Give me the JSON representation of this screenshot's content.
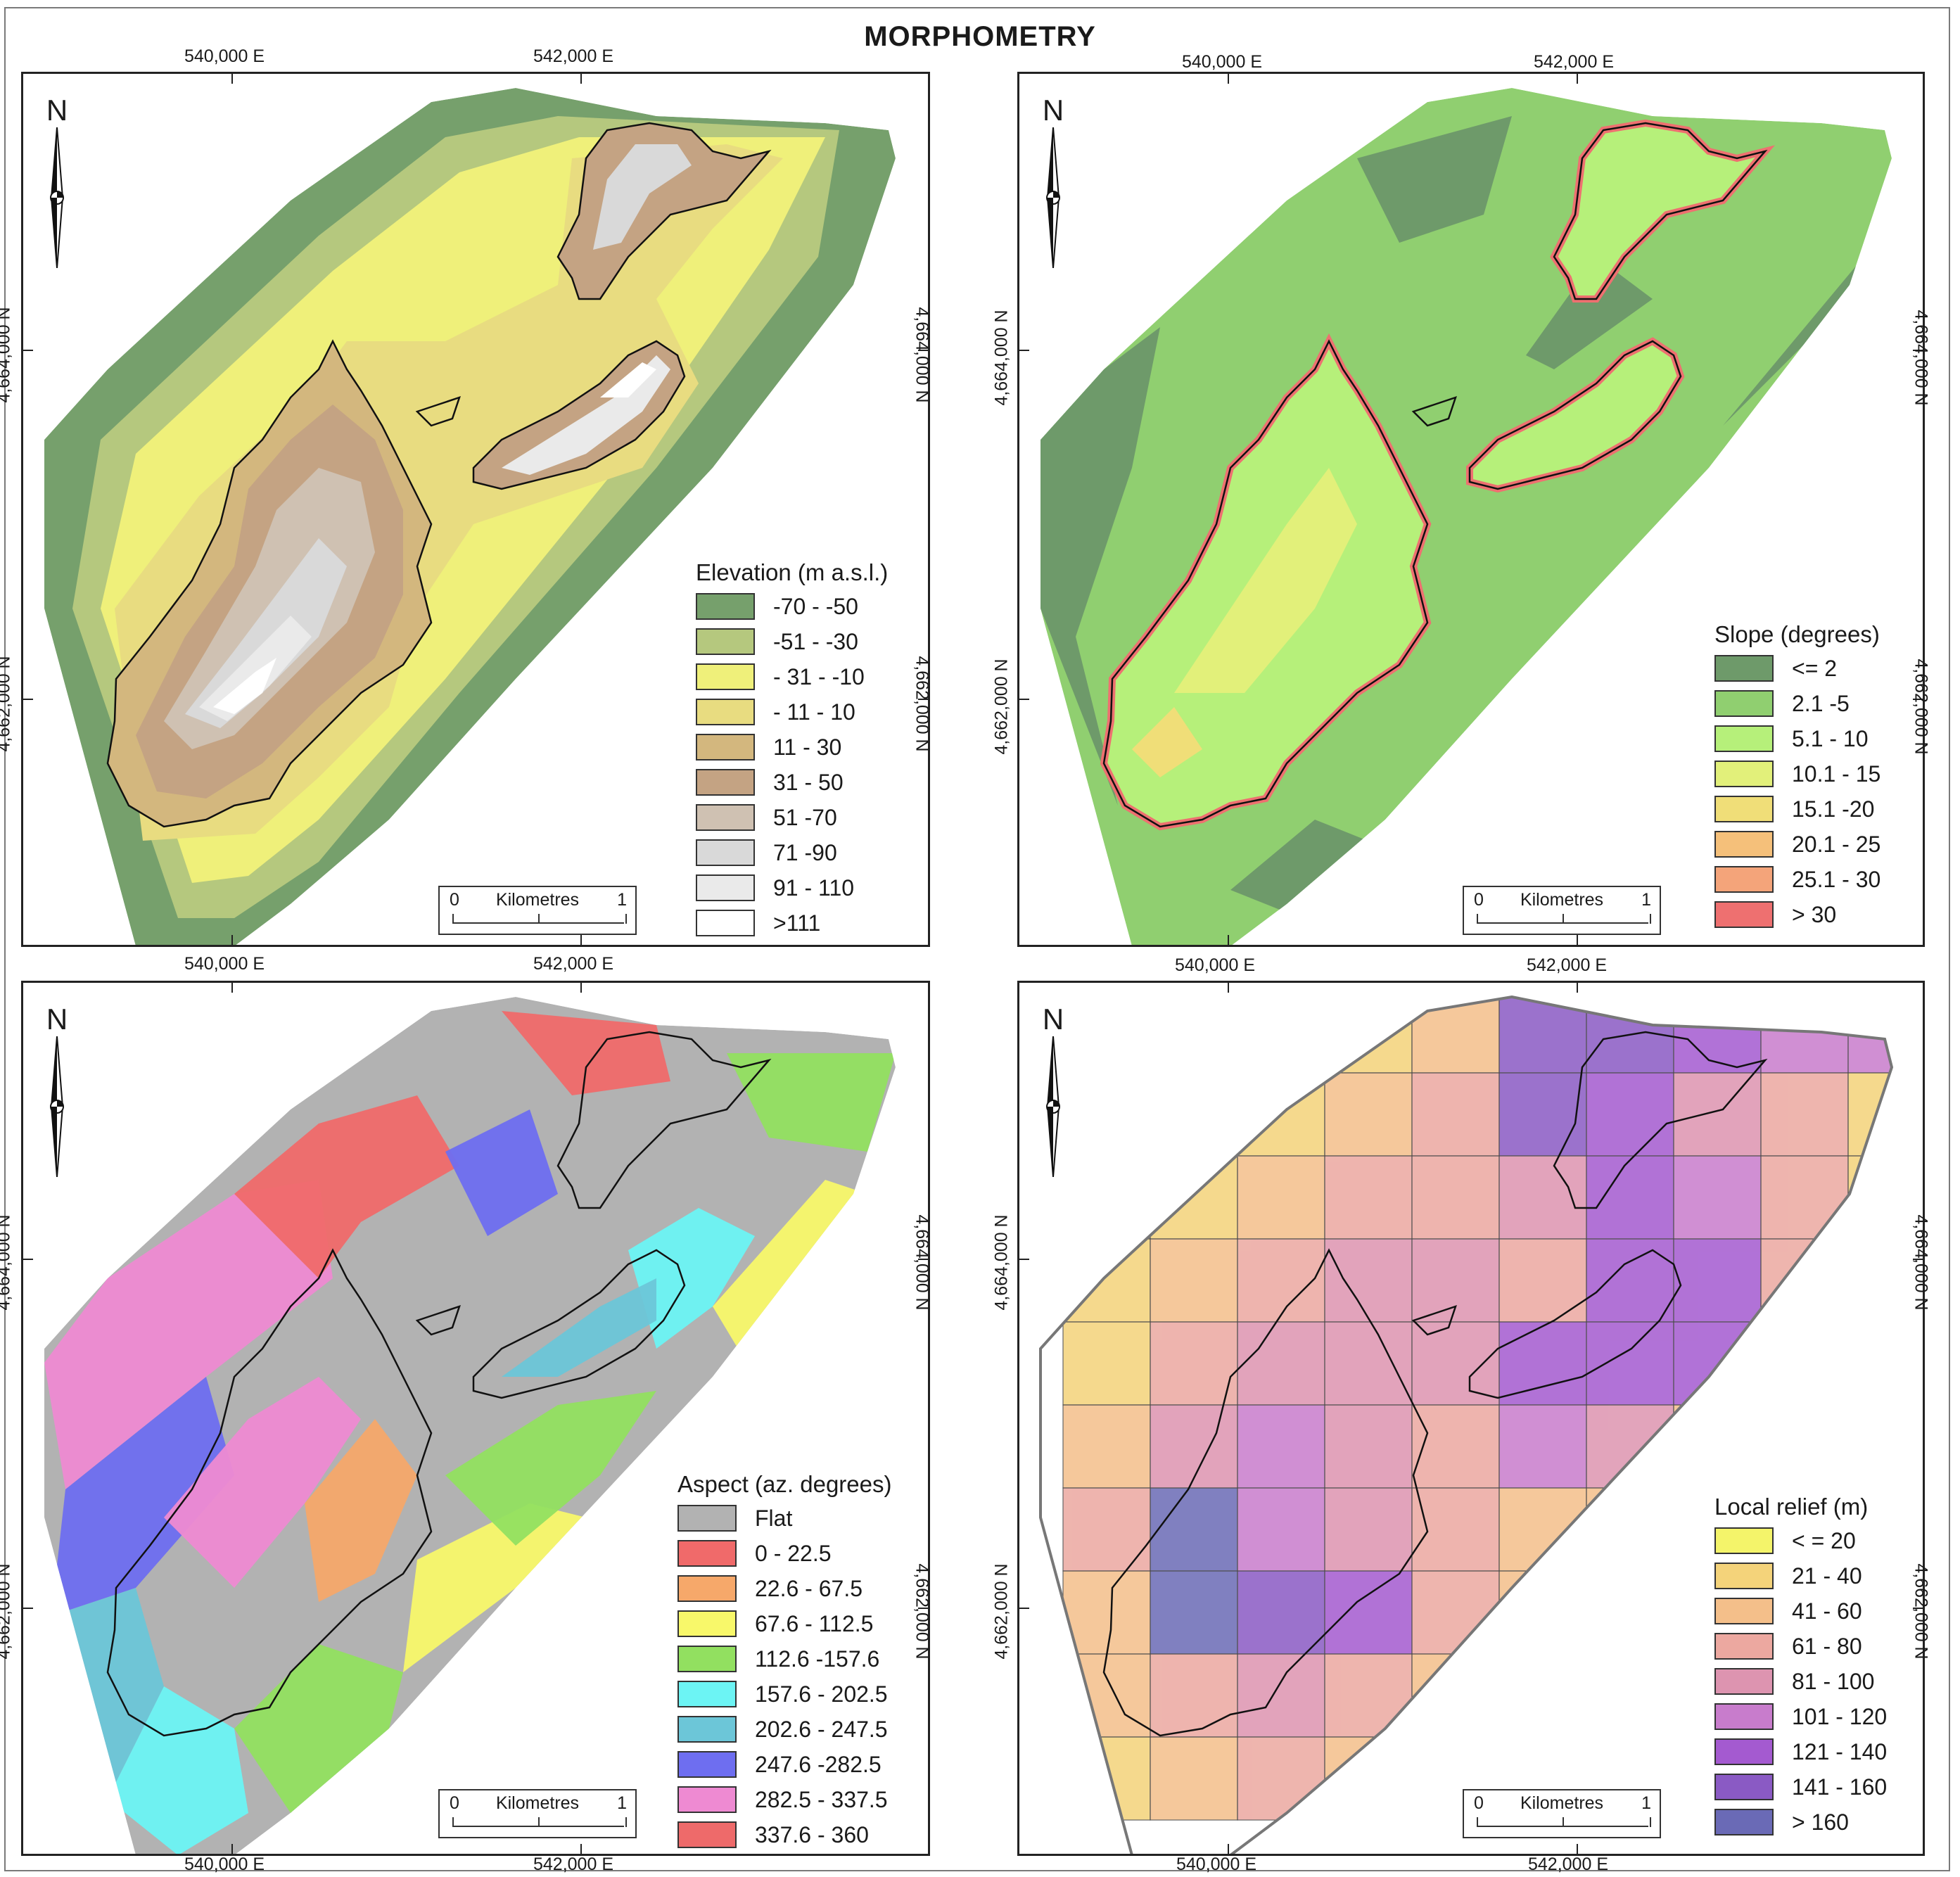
{
  "title": "MORPHOMETRY",
  "coords": {
    "e540": "540,000 E",
    "e542": "542,000 E",
    "n4664": "4,664,000 N",
    "n4662": "4,662,000 N"
  },
  "north_label": "N",
  "scale": {
    "zero": "0",
    "unit": "Kilometres",
    "one": "1"
  },
  "panels": [
    {
      "legend": {
        "title": "Elevation (m a.s.l.)",
        "classes": [
          {
            "label": "-70 - -50",
            "color": "#76a06c"
          },
          {
            "label": "-51 - -30",
            "color": "#b5c87e"
          },
          {
            "label": "- 31 - -10",
            "color": "#eff07a"
          },
          {
            "label": "- 11 - 10",
            "color": "#e8dc80"
          },
          {
            "label": "11 - 30",
            "color": "#d3b77e"
          },
          {
            "label": "31 - 50",
            "color": "#c4a383"
          },
          {
            "label": "51 -70",
            "color": "#cfc1b2"
          },
          {
            "label": "71 -90",
            "color": "#d9d9d9"
          },
          {
            "label": "91 - 110",
            "color": "#eaeaea"
          },
          {
            "label": ">111",
            "color": "#ffffff"
          }
        ]
      }
    },
    {
      "legend": {
        "title": "Slope (degrees)",
        "classes": [
          {
            "label": "<= 2",
            "color": "#6e9a6a"
          },
          {
            "label": "2.1 -5",
            "color": "#90cf70"
          },
          {
            "label": "5.1 - 10",
            "color": "#b6f07a"
          },
          {
            "label": "10.1 - 15",
            "color": "#e2f07a"
          },
          {
            "label": "15.1 -20",
            "color": "#f0de78"
          },
          {
            "label": "20.1 - 25",
            "color": "#f5c07a"
          },
          {
            "label": "25.1 - 30",
            "color": "#f4a47a"
          },
          {
            "label": "> 30",
            "color": "#ee7070"
          }
        ]
      }
    },
    {
      "legend": {
        "title": "Aspect (az. degrees)",
        "classes": [
          {
            "label": "Flat",
            "color": "#b2b2b2"
          },
          {
            "label": "0 - 22.5",
            "color": "#f06a6a"
          },
          {
            "label": "22.6 - 67.5",
            "color": "#f6a86a"
          },
          {
            "label": "67.6 - 112.5",
            "color": "#f8f86a"
          },
          {
            "label": "112.6 -157.6",
            "color": "#92e060"
          },
          {
            "label": "157.6 - 202.5",
            "color": "#6cf4f4"
          },
          {
            "label": "202.6 - 247.5",
            "color": "#6cc6d8"
          },
          {
            "label": "247.6 -282.5",
            "color": "#6e6ef0"
          },
          {
            "label": "282.5 - 337.5",
            "color": "#ee8ad2"
          },
          {
            "label": "337.6 - 360",
            "color": "#ee6a6a"
          }
        ]
      }
    },
    {
      "legend": {
        "title": "Local relief (m)",
        "classes": [
          {
            "label": "< = 20",
            "color": "#f4f46a"
          },
          {
            "label": "21 - 40",
            "color": "#f4d37a"
          },
          {
            "label": "41 - 60",
            "color": "#f4bf8a"
          },
          {
            "label": "61 - 80",
            "color": "#eca8a0"
          },
          {
            "label": "81 - 100",
            "color": "#dd94b0"
          },
          {
            "label": "101 - 120",
            "color": "#c87ccc"
          },
          {
            "label": "121 - 140",
            "color": "#a45ad0"
          },
          {
            "label": "141 - 160",
            "color": "#8a5ac4"
          },
          {
            "label": "> 160",
            "color": "#6a6ab6"
          }
        ]
      }
    }
  ]
}
